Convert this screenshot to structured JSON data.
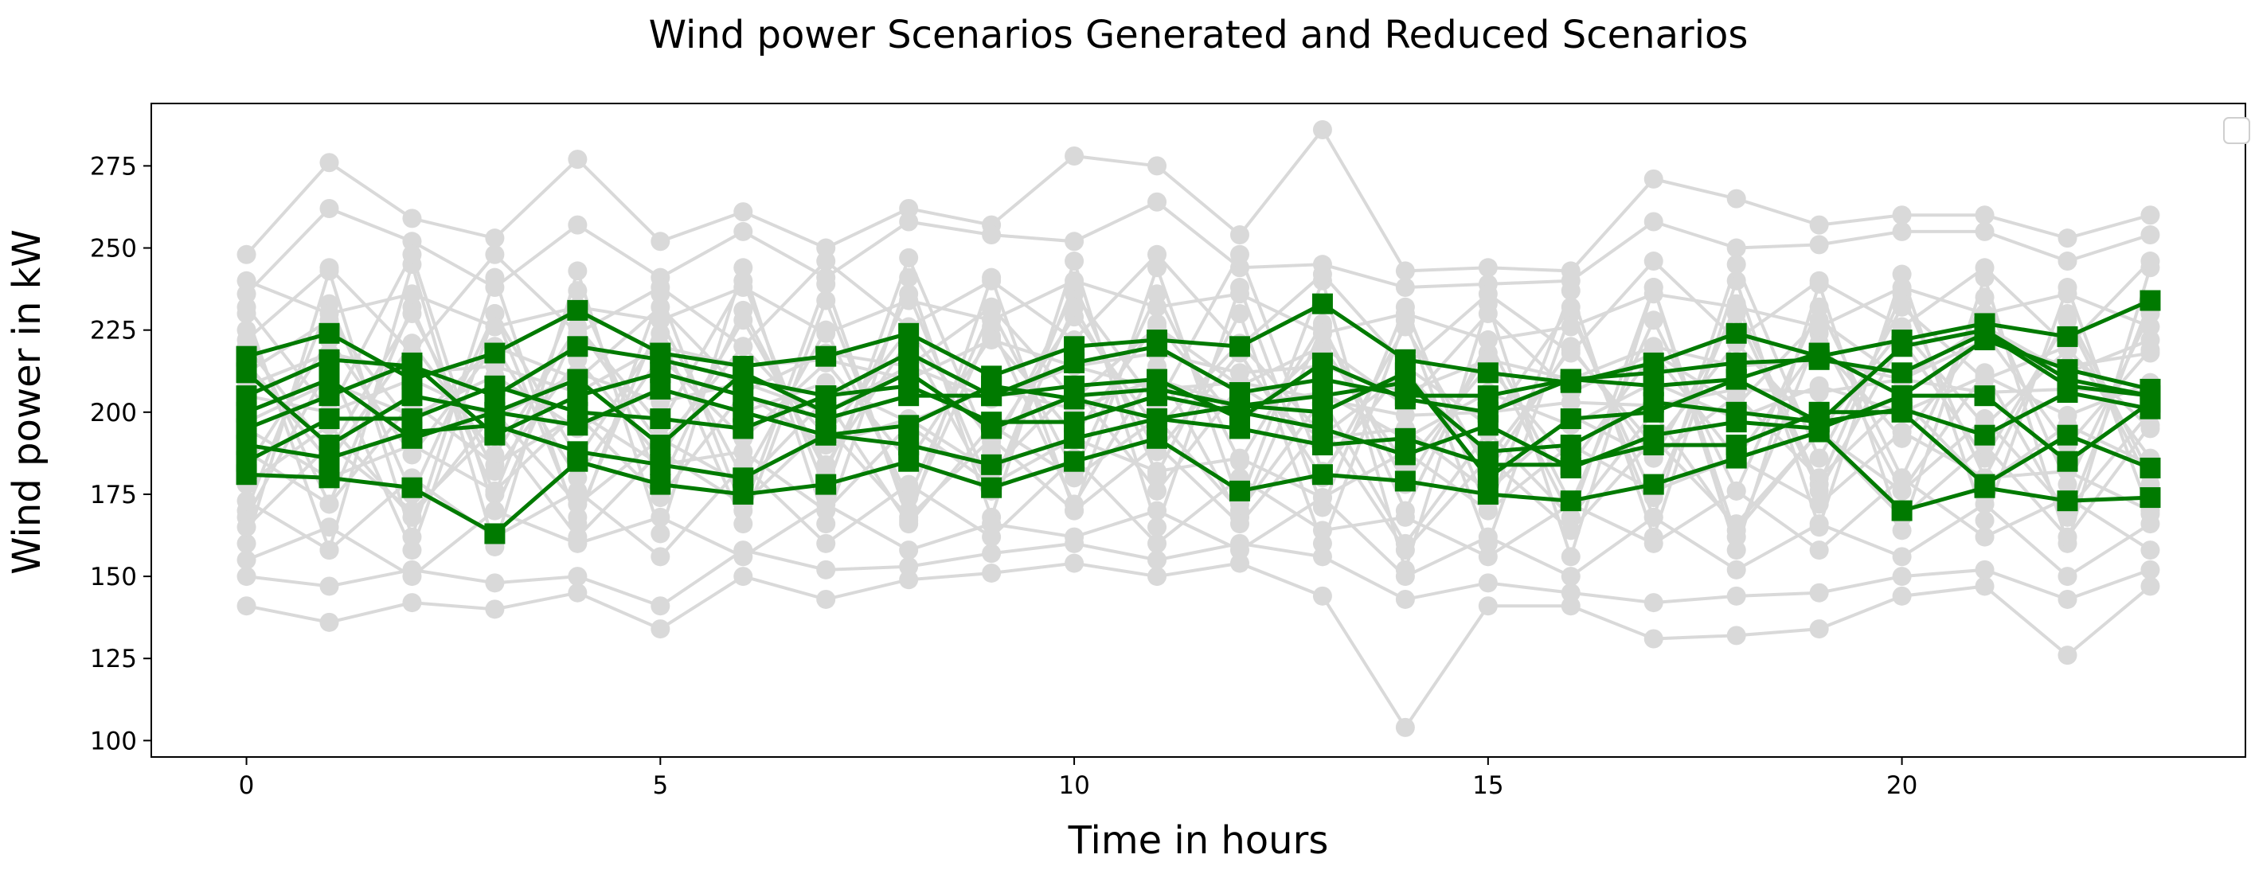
{
  "chart_data": {
    "type": "line",
    "title": "Wind power Scenarios Generated and Reduced Scenarios",
    "xlabel": "Time in hours",
    "ylabel": "Wind power in kW",
    "xlim": [
      -1.15,
      24.15
    ],
    "ylim": [
      95,
      294
    ],
    "xticks": [
      0,
      5,
      10,
      15,
      20
    ],
    "yticks": [
      100,
      125,
      150,
      175,
      200,
      225,
      250,
      275
    ],
    "x": [
      0,
      1,
      2,
      3,
      4,
      5,
      6,
      7,
      8,
      9,
      10,
      11,
      12,
      13,
      14,
      15,
      16,
      17,
      18,
      19,
      20,
      21,
      22,
      23
    ],
    "grid": false,
    "legend": "top-right (empty)",
    "colors": {
      "generated": "#d9d9d9",
      "reduced": "#007a00"
    },
    "generated_scenarios": [
      {
        "values": [
          248,
          276,
          259,
          253,
          277,
          252,
          261,
          250,
          262,
          257,
          278,
          275,
          254,
          286,
          243,
          244,
          243,
          271,
          265,
          257,
          260,
          260,
          253,
          260
        ]
      },
      {
        "values": [
          141,
          136,
          142,
          140,
          145,
          134,
          150,
          143,
          149,
          151,
          154,
          150,
          154,
          144,
          104,
          141,
          141,
          131,
          132,
          134,
          144,
          147,
          126,
          147
        ]
      },
      {
        "values": [
          236,
          262,
          252,
          238,
          257,
          241,
          255,
          241,
          258,
          254,
          252,
          264,
          244,
          245,
          238,
          239,
          240,
          258,
          250,
          251,
          255,
          255,
          246,
          254
        ]
      },
      {
        "values": [
          150,
          147,
          152,
          148,
          150,
          141,
          158,
          152,
          153,
          157,
          160,
          155,
          160,
          156,
          143,
          148,
          145,
          142,
          144,
          145,
          150,
          152,
          143,
          152
        ]
      },
      {
        "values": [
          230,
          158,
          245,
          159,
          243,
          163,
          244,
          166,
          241,
          168,
          246,
          165,
          238,
          171,
          232,
          170,
          237,
          162,
          240,
          165,
          242,
          167,
          238,
          169
        ]
      },
      {
        "values": [
          160,
          243,
          162,
          241,
          166,
          236,
          170,
          239,
          167,
          241,
          170,
          244,
          172,
          240,
          152,
          233,
          156,
          238,
          158,
          239,
          164,
          241,
          160,
          244
        ]
      },
      {
        "values": [
          225,
          172,
          232,
          175,
          237,
          178,
          231,
          182,
          236,
          176,
          239,
          181,
          230,
          160,
          228,
          160,
          230,
          174,
          233,
          178,
          236,
          180,
          230,
          181
        ]
      },
      {
        "values": [
          170,
          233,
          175,
          230,
          168,
          228,
          180,
          225,
          174,
          231,
          182,
          236,
          185,
          227,
          170,
          222,
          172,
          228,
          176,
          232,
          180,
          235,
          178,
          230
        ]
      },
      {
        "values": [
          215,
          185,
          221,
          187,
          226,
          190,
          220,
          193,
          225,
          191,
          229,
          195,
          221,
          193,
          212,
          186,
          219,
          190,
          221,
          194,
          225,
          196,
          219,
          195
        ]
      },
      {
        "values": [
          183,
          222,
          187,
          220,
          180,
          217,
          192,
          215,
          185,
          223,
          193,
          227,
          196,
          220,
          184,
          214,
          184,
          218,
          186,
          221,
          192,
          224,
          190,
          219
        ]
      },
      {
        "values": [
          205,
          200,
          210,
          198,
          212,
          203,
          209,
          200,
          214,
          204,
          214,
          207,
          209,
          204,
          199,
          200,
          203,
          202,
          207,
          206,
          210,
          206,
          207,
          206
        ]
      },
      {
        "values": [
          197,
          209,
          199,
          211,
          195,
          207,
          200,
          209,
          197,
          207,
          201,
          210,
          202,
          206,
          192,
          206,
          196,
          209,
          198,
          208,
          200,
          211,
          199,
          209
        ]
      },
      {
        "values": [
          232,
          200,
          248,
          170,
          226,
          196,
          240,
          176,
          247,
          188,
          236,
          202,
          248,
          182,
          214,
          196,
          232,
          168,
          245,
          186,
          232,
          210,
          220,
          186
        ]
      },
      {
        "values": [
          168,
          214,
          158,
          230,
          186,
          224,
          166,
          234,
          170,
          226,
          172,
          214,
          168,
          226,
          178,
          218,
          168,
          238,
          162,
          224,
          176,
          212,
          168,
          234
        ]
      },
      {
        "values": [
          188,
          172,
          203,
          184,
          199,
          174,
          206,
          190,
          198,
          182,
          208,
          176,
          208,
          192,
          195,
          176,
          199,
          186,
          205,
          180,
          204,
          178,
          196,
          184
        ]
      },
      {
        "values": [
          212,
          228,
          196,
          220,
          210,
          232,
          206,
          218,
          214,
          232,
          204,
          226,
          208,
          220,
          202,
          230,
          206,
          218,
          202,
          228,
          210,
          226,
          212,
          222
        ]
      },
      {
        "values": [
          178,
          196,
          168,
          200,
          172,
          192,
          178,
          204,
          166,
          196,
          180,
          198,
          170,
          204,
          160,
          194,
          168,
          200,
          164,
          194,
          176,
          198,
          170,
          200
        ]
      },
      {
        "values": [
          220,
          188,
          230,
          182,
          216,
          186,
          228,
          184,
          222,
          176,
          232,
          188,
          218,
          180,
          226,
          182,
          220,
          186,
          230,
          176,
          222,
          186,
          228,
          178
        ]
      },
      {
        "values": [
          155,
          165,
          150,
          170,
          160,
          168,
          156,
          172,
          158,
          166,
          162,
          170,
          158,
          174,
          150,
          162,
          150,
          168,
          152,
          166,
          156,
          172,
          150,
          166
        ]
      },
      {
        "values": [
          240,
          230,
          236,
          226,
          232,
          228,
          238,
          224,
          234,
          228,
          240,
          232,
          236,
          224,
          230,
          222,
          226,
          236,
          232,
          226,
          238,
          230,
          236,
          226
        ]
      },
      {
        "values": [
          195,
          180,
          190,
          176,
          200,
          184,
          188,
          170,
          196,
          178,
          192,
          182,
          186,
          174,
          188,
          170,
          190,
          176,
          186,
          172,
          194,
          180,
          182,
          170
        ]
      },
      {
        "values": [
          165,
          190,
          170,
          195,
          162,
          188,
          172,
          196,
          168,
          192,
          170,
          190,
          166,
          196,
          158,
          186,
          164,
          192,
          166,
          194,
          168,
          190,
          162,
          196
        ]
      },
      {
        "values": [
          208,
          218,
          212,
          214,
          206,
          220,
          214,
          216,
          210,
          222,
          214,
          218,
          212,
          214,
          206,
          216,
          210,
          220,
          214,
          216,
          210,
          222,
          214,
          218
        ]
      },
      {
        "values": [
          173,
          158,
          180,
          162,
          176,
          156,
          184,
          160,
          178,
          162,
          186,
          160,
          180,
          164,
          168,
          156,
          172,
          160,
          176,
          158,
          180,
          162,
          174,
          158
        ]
      },
      {
        "values": [
          222,
          244,
          218,
          248,
          224,
          238,
          220,
          246,
          226,
          240,
          222,
          248,
          220,
          242,
          214,
          236,
          218,
          246,
          222,
          240,
          226,
          244,
          220,
          246
        ]
      }
    ],
    "reduced_scenarios": [
      {
        "values": [
          217,
          224,
          210,
          218,
          231,
          218,
          214,
          217,
          224,
          211,
          220,
          222,
          220,
          233,
          216,
          212,
          209,
          215,
          224,
          217,
          222,
          227,
          223,
          234
        ]
      },
      {
        "values": [
          181,
          180,
          177,
          163,
          185,
          178,
          175,
          178,
          185,
          177,
          185,
          192,
          176,
          181,
          179,
          175,
          173,
          178,
          186,
          194,
          170,
          177,
          173,
          174
        ]
      },
      {
        "values": [
          205,
          216,
          214,
          205,
          220,
          216,
          210,
          205,
          218,
          205,
          215,
          220,
          206,
          210,
          205,
          205,
          210,
          212,
          215,
          216,
          212,
          224,
          208,
          205
        ]
      },
      {
        "values": [
          190,
          186,
          194,
          196,
          188,
          184,
          180,
          193,
          190,
          184,
          192,
          198,
          195,
          190,
          192,
          184,
          184,
          190,
          190,
          200,
          200,
          178,
          193,
          183
        ]
      },
      {
        "values": [
          212,
          190,
          205,
          200,
          196,
          207,
          200,
          193,
          196,
          208,
          204,
          198,
          202,
          205,
          209,
          188,
          190,
          203,
          200,
          197,
          201,
          193,
          206,
          201
        ]
      },
      {
        "values": [
          195,
          205,
          215,
          193,
          205,
          212,
          205,
          198,
          205,
          205,
          208,
          210,
          198,
          215,
          204,
          200,
          210,
          208,
          210,
          197,
          220,
          225,
          210,
          205
        ]
      },
      {
        "values": [
          185,
          198,
          198,
          208,
          200,
          198,
          195,
          205,
          208,
          197,
          197,
          205,
          200,
          195,
          187,
          196,
          183,
          193,
          197,
          195,
          205,
          205,
          185,
          203
        ]
      },
      {
        "values": [
          200,
          210,
          192,
          200,
          210,
          190,
          212,
          200,
          212,
          195,
          205,
          207,
          202,
          200,
          212,
          180,
          198,
          200,
          210,
          218,
          205,
          222,
          213,
          207
        ]
      }
    ]
  }
}
